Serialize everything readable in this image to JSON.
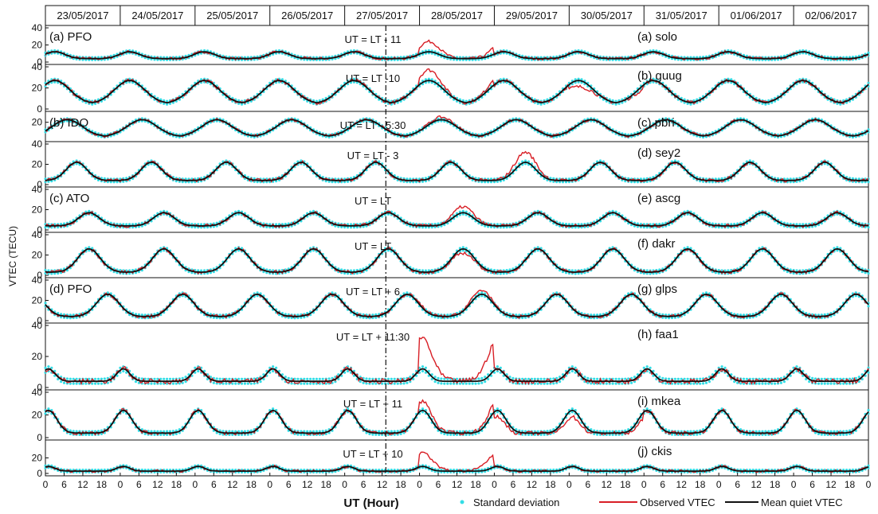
{
  "chart_data": {
    "type": "line",
    "dates": [
      "23/05/2017",
      "24/05/2017",
      "25/05/2017",
      "26/05/2017",
      "27/05/2017",
      "28/05/2017",
      "29/05/2017",
      "30/05/2017",
      "31/05/2017",
      "01/06/2017",
      "02/06/2017"
    ],
    "ylabel": "VTEC (TECU)",
    "xlabel": "UT (Hour)",
    "x_tick_labels": [
      "0",
      "6",
      "12",
      "18",
      "0",
      "6",
      "12",
      "18",
      "0",
      "6",
      "12",
      "18",
      "0",
      "6",
      "12",
      "18",
      "0",
      "6",
      "12",
      "18",
      "0",
      "6",
      "12",
      "18",
      "0",
      "6",
      "12",
      "18",
      "0",
      "6",
      "12",
      "18",
      "0",
      "6",
      "12",
      "18",
      "0",
      "6",
      "12",
      "18",
      "0",
      "6",
      "12",
      "18",
      "0"
    ],
    "storm_marker_day": 4.55,
    "series_names": [
      "Standard deviation",
      "Observed VTEC",
      "Mean quiet VTEC"
    ],
    "series_colors": {
      "Standard deviation": "#33dde6",
      "Observed VTEC": "#d81f26",
      "Mean quiet VTEC": "#111111"
    },
    "panels": [
      {
        "station": "(a) solo",
        "group_label": "(a) PFO",
        "annotation": "UT = LT - 11",
        "yticks": [
          "40",
          "20",
          "0"
        ],
        "ylim": [
          0,
          40
        ],
        "peak_hour": 3,
        "base": 4,
        "amplitude": 8,
        "width": 0.55,
        "storm_boost": [
          0,
          0,
          0,
          0,
          0,
          12,
          0,
          0,
          0,
          0,
          0
        ]
      },
      {
        "station": "(b) guug",
        "group_label": "",
        "annotation": "UT = LT -10",
        "yticks": [
          "40",
          "20",
          "0"
        ],
        "ylim": [
          0,
          40
        ],
        "peak_hour": 3,
        "base": 5,
        "amplitude": 22,
        "width": 0.8,
        "storm_boost": [
          0,
          0,
          0,
          0,
          0,
          10,
          0,
          -6,
          0,
          0,
          0
        ]
      },
      {
        "station": "(c) pbri",
        "group_label": "(b) IDO",
        "annotation": "UT = LT - 5:30",
        "yticks": [
          "20",
          ""
        ],
        "ylim": [
          0,
          30
        ],
        "peak_hour": 7,
        "base": 3,
        "amplitude": 20,
        "width": 0.8,
        "storm_boost": [
          0,
          0,
          0,
          0,
          0,
          3,
          0,
          0,
          0,
          0,
          0
        ]
      },
      {
        "station": "(d) sey2",
        "group_label": "",
        "annotation": "UT = LT - 3",
        "yticks": [
          "40",
          "20",
          "0"
        ],
        "ylim": [
          0,
          40
        ],
        "peak_hour": 10,
        "base": 4,
        "amplitude": 18,
        "width": 0.55,
        "storm_boost": [
          0,
          0,
          0,
          0,
          0,
          0,
          10,
          0,
          0,
          0,
          0
        ]
      },
      {
        "station": "(e) ascg",
        "group_label": "(c) ATO",
        "annotation": "UT = LT",
        "yticks": [
          "40",
          "20",
          "0"
        ],
        "ylim": [
          0,
          40
        ],
        "peak_hour": 14,
        "base": 4,
        "amplitude": 13,
        "width": 0.55,
        "storm_boost": [
          0,
          0,
          0,
          0,
          0,
          6,
          0,
          0,
          0,
          0,
          0
        ]
      },
      {
        "station": "(f) dakr",
        "group_label": "",
        "annotation": "UT = LT",
        "yticks": [
          "40",
          "20",
          "0"
        ],
        "ylim": [
          0,
          40
        ],
        "peak_hour": 14,
        "base": 3,
        "amplitude": 23,
        "width": 0.6,
        "storm_boost": [
          0,
          0,
          0,
          0,
          0,
          -4,
          0,
          0,
          0,
          0,
          0
        ]
      },
      {
        "station": "(g) glps",
        "group_label": "(d) PFO",
        "annotation": "UT = LT + 6",
        "yticks": [
          "40",
          "20",
          "0"
        ],
        "ylim": [
          0,
          40
        ],
        "peak_hour": 20,
        "base": 4,
        "amplitude": 22,
        "width": 0.6,
        "storm_boost": [
          0,
          0,
          0,
          0,
          0,
          4,
          0,
          0,
          0,
          0,
          0
        ]
      },
      {
        "station": "(h) faa1",
        "group_label": "",
        "annotation": "UT = LT + 11:30",
        "yticks": [
          "40",
          "20",
          "0"
        ],
        "ylim": [
          0,
          40
        ],
        "peak_hour": 1,
        "base": 4,
        "amplitude": 8,
        "width": 0.35,
        "storm_boost": [
          0,
          0,
          0,
          0,
          0,
          20,
          0,
          0,
          0,
          0,
          0
        ]
      },
      {
        "station": "(i) mkea",
        "group_label": "",
        "annotation": "UT = LT + 11",
        "yticks": [
          "40",
          "20",
          "0"
        ],
        "ylim": [
          0,
          40
        ],
        "peak_hour": 1,
        "base": 4,
        "amplitude": 20,
        "width": 0.45,
        "storm_boost": [
          0,
          0,
          0,
          0,
          0,
          8,
          -6,
          -6,
          0,
          0,
          0
        ]
      },
      {
        "station": "(j) ckis",
        "group_label": "",
        "annotation": "UT = LT + 10",
        "yticks": [
          "20",
          "0"
        ],
        "ylim": [
          0,
          40
        ],
        "peak_hour": 1,
        "base": 3,
        "amplitude": 6,
        "width": 0.35,
        "storm_boost": [
          0,
          0,
          0,
          0,
          0,
          18,
          0,
          0,
          0,
          0,
          0
        ]
      }
    ]
  }
}
